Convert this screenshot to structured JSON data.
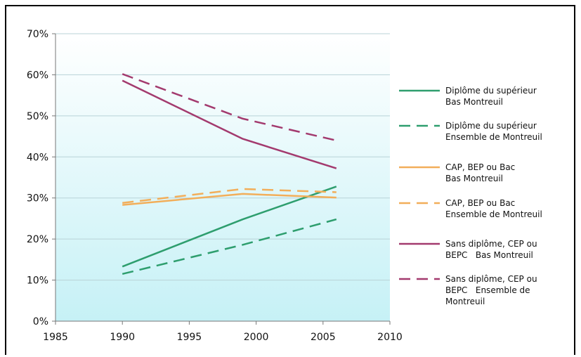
{
  "chart_data": {
    "type": "line",
    "title": "",
    "xlabel": "",
    "ylabel": "",
    "xlim": [
      1985,
      2010
    ],
    "ylim": [
      0,
      70
    ],
    "x_ticks": [
      "1985",
      "1990",
      "1995",
      "2000",
      "2005",
      "2010"
    ],
    "y_ticks": [
      "0%",
      "10%",
      "20%",
      "30%",
      "40%",
      "50%",
      "60%",
      "70%"
    ],
    "grid": "horizontal",
    "legend_position": "right",
    "series": [
      {
        "name": "Diplôme du supérieur Bas Montreuil",
        "legend_lines": [
          "Diplôme du supérieur",
          "Bas Montreuil"
        ],
        "color": "#2e9e6e",
        "dash": "solid",
        "x": [
          1990,
          1999,
          2006
        ],
        "y": [
          13.3,
          24.8,
          32.8
        ]
      },
      {
        "name": "Diplôme du supérieur Ensemble de Montreuil",
        "legend_lines": [
          "Diplôme du supérieur",
          "Ensemble de Montreuil"
        ],
        "color": "#2e9e6e",
        "dash": "dashed",
        "x": [
          1990,
          1999,
          2006
        ],
        "y": [
          11.5,
          18.6,
          24.8
        ]
      },
      {
        "name": "CAP, BEP ou Bac Bas Montreuil",
        "legend_lines": [
          "CAP, BEP ou Bac",
          "Bas Montreuil"
        ],
        "color": "#f2ae5a",
        "dash": "solid",
        "x": [
          1990,
          1999,
          2006
        ],
        "y": [
          28.3,
          31.0,
          30.1
        ]
      },
      {
        "name": "CAP, BEP ou Bac Ensemble de Montreuil",
        "legend_lines": [
          "CAP, BEP ou Bac",
          "Ensemble de Montreuil"
        ],
        "color": "#f2ae5a",
        "dash": "dashed",
        "x": [
          1990,
          1999,
          2006
        ],
        "y": [
          28.8,
          32.2,
          31.4
        ]
      },
      {
        "name": "Sans diplôme, CEP ou BEPC Bas Montreuil",
        "legend_lines": [
          "Sans diplôme, CEP ou",
          "BEPC   Bas Montreuil"
        ],
        "color": "#a33a6e",
        "dash": "solid",
        "x": [
          1990,
          1999,
          2006
        ],
        "y": [
          58.6,
          44.4,
          37.2
        ]
      },
      {
        "name": "Sans diplôme, CEP ou BEPC Ensemble de Montreuil",
        "legend_lines": [
          "Sans diplôme, CEP ou",
          "BEPC   Ensemble de",
          "Montreuil"
        ],
        "color": "#a33a6e",
        "dash": "dashed",
        "x": [
          1990,
          1999,
          2006
        ],
        "y": [
          60.2,
          49.3,
          44.0
        ]
      }
    ]
  }
}
